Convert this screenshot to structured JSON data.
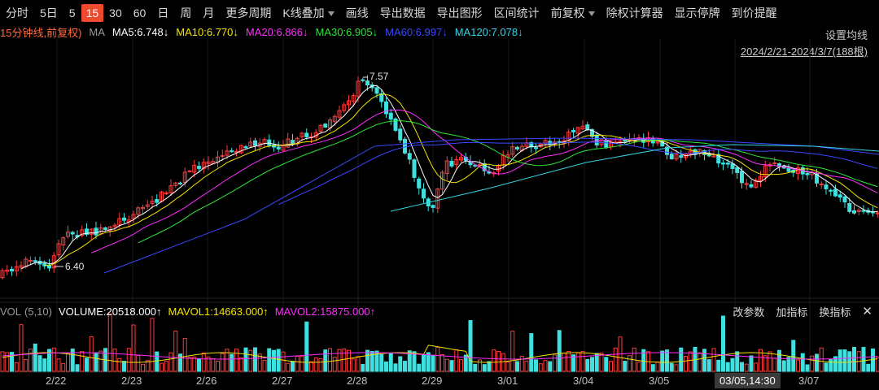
{
  "toolbar": {
    "items": [
      {
        "label": "分时"
      },
      {
        "label": "5日"
      },
      {
        "label": "5"
      },
      {
        "label": "15"
      },
      {
        "label": "30"
      },
      {
        "label": "60"
      },
      {
        "label": "日"
      },
      {
        "label": "周"
      },
      {
        "label": "月"
      },
      {
        "label": "更多周期"
      },
      {
        "label": "K线叠加"
      },
      {
        "label": "画线"
      },
      {
        "label": "导出数据"
      },
      {
        "label": "导出图形"
      },
      {
        "label": "区间统计"
      },
      {
        "label": "前复权"
      },
      {
        "label": "除权计算器"
      },
      {
        "label": "显示停牌"
      },
      {
        "label": "到价提醒"
      }
    ],
    "active_index": 3
  },
  "ma_legend": {
    "period_label": "15分钟线,前复权)",
    "ma_label": "MA",
    "items": [
      {
        "text": "MA5:6.748↓",
        "color": "#ffffff"
      },
      {
        "text": "MA10:6.770↓",
        "color": "#f5e400"
      },
      {
        "text": "MA20:6.866↓",
        "color": "#ff2dff"
      },
      {
        "text": "MA30:6.905↓",
        "color": "#2ee63a"
      },
      {
        "text": "MA60:6.997↓",
        "color": "#3a48ff"
      },
      {
        "text": "MA120:7.078↓",
        "color": "#34d6e6"
      }
    ],
    "settings": "设置均线",
    "date_range": "2024/2/21-2024/3/7(188根)"
  },
  "price_labels": {
    "high": "7.57",
    "low": "6.40"
  },
  "volume_legend": {
    "name": "VOL",
    "params": "(5,10)",
    "items": [
      {
        "text": "VOLUME:20518.000↑",
        "color": "#ffffff"
      },
      {
        "text": "MAVOL1:14663.000↑",
        "color": "#f5e400"
      },
      {
        "text": "MAVOL2:15875.000↑",
        "color": "#ff2dff"
      }
    ],
    "buttons": [
      {
        "label": "改参数"
      },
      {
        "label": "加指标"
      },
      {
        "label": "换指标"
      }
    ]
  },
  "x_axis": {
    "ticks": [
      "2/22",
      "2/23",
      "2/26",
      "2/27",
      "2/28",
      "2/29",
      "3/01",
      "3/04",
      "3/05",
      "3/07"
    ],
    "crosshair_label": "03/05,14:30"
  },
  "colors": {
    "up": "#ff3b3b",
    "down": "#3ee0e0",
    "bg": "#000000"
  }
}
